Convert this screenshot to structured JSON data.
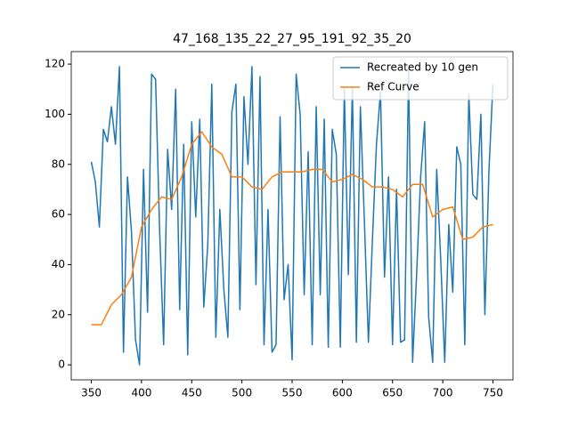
{
  "chart_data": {
    "type": "line",
    "title": "47_168_135_22_27_95_191_92_35_20",
    "xlim": [
      330,
      770
    ],
    "ylim": [
      -6,
      125
    ],
    "xticks": [
      350,
      400,
      450,
      500,
      550,
      600,
      650,
      700,
      750
    ],
    "yticks": [
      0,
      20,
      40,
      60,
      80,
      100,
      120
    ],
    "legend": "upper right",
    "series": [
      {
        "name": "Recreated by 10 gen",
        "color": "#1f77b4",
        "x": [
          350,
          354,
          358,
          362,
          366,
          370,
          374,
          378,
          382,
          386,
          390,
          394,
          398,
          402,
          406,
          410,
          414,
          418,
          422,
          426,
          430,
          434,
          438,
          442,
          446,
          450,
          454,
          458,
          462,
          466,
          470,
          474,
          478,
          482,
          486,
          490,
          494,
          498,
          502,
          506,
          510,
          514,
          518,
          522,
          526,
          530,
          534,
          538,
          542,
          546,
          550,
          554,
          558,
          562,
          566,
          570,
          574,
          578,
          582,
          586,
          590,
          594,
          598,
          602,
          606,
          610,
          614,
          618,
          622,
          626,
          630,
          634,
          638,
          642,
          646,
          650,
          654,
          658,
          662,
          666,
          670,
          674,
          678,
          682,
          686,
          690,
          694,
          698,
          702,
          706,
          710,
          714,
          718,
          722,
          726,
          730,
          734,
          738,
          742,
          746,
          750
        ],
        "values": [
          81,
          73,
          55,
          94,
          89,
          103,
          88,
          119,
          5,
          75,
          53,
          10,
          0,
          78,
          21,
          116,
          114,
          54,
          8,
          86,
          62,
          110,
          22,
          88,
          4,
          97,
          59,
          98,
          23,
          48,
          112,
          11,
          62,
          30,
          11,
          101,
          112,
          22,
          107,
          80,
          119,
          32,
          115,
          8,
          62,
          5,
          8,
          99,
          26,
          40,
          2,
          116,
          100,
          28,
          85,
          8,
          103,
          28,
          98,
          7,
          94,
          84,
          7,
          110,
          36,
          111,
          9,
          103,
          57,
          9,
          50,
          88,
          109,
          35,
          75,
          8,
          70,
          9,
          10,
          118,
          1,
          36,
          75,
          97,
          19,
          1,
          78,
          42,
          1,
          56,
          29,
          87,
          80,
          8,
          108,
          68,
          66,
          100,
          20,
          77,
          112
        ]
      },
      {
        "name": "Ref Curve",
        "color": "#ff7f0e",
        "x": [
          350,
          360,
          370,
          380,
          390,
          400,
          410,
          420,
          430,
          440,
          450,
          460,
          470,
          480,
          490,
          500,
          510,
          520,
          530,
          540,
          550,
          560,
          570,
          580,
          590,
          600,
          610,
          620,
          630,
          640,
          650,
          660,
          670,
          680,
          690,
          700,
          710,
          720,
          730,
          740,
          750
        ],
        "values": [
          16,
          16,
          24,
          28,
          35,
          55,
          62,
          67,
          66,
          75,
          88,
          93,
          87,
          84,
          75,
          75,
          71,
          70,
          75,
          77,
          77,
          77,
          78,
          78,
          73,
          74,
          76,
          74,
          71,
          71,
          70,
          67,
          72,
          72,
          59,
          62,
          63,
          50,
          51,
          55,
          56
        ]
      }
    ]
  }
}
